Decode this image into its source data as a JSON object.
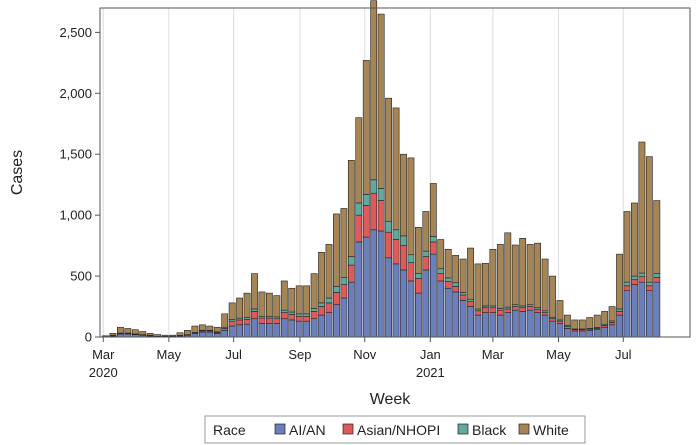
{
  "chart_data": {
    "type": "bar",
    "stacked": true,
    "xlabel": "Week",
    "ylabel": "Cases",
    "ylim": [
      0,
      2700
    ],
    "grid": "vertical",
    "legend": {
      "title": "Race",
      "position": "bottom"
    },
    "y_ticks": [
      "0",
      "500",
      "1,000",
      "1,500",
      "2,000",
      "2,500"
    ],
    "y_tick_values": [
      0,
      500,
      1000,
      1500,
      2000,
      2500
    ],
    "x_ticks": [
      {
        "label": "Mar",
        "year": "2020",
        "week_index": -0.3
      },
      {
        "label": "May",
        "year": "",
        "week_index": 8.5
      },
      {
        "label": "Jul",
        "year": "",
        "week_index": 17.2
      },
      {
        "label": "Sep",
        "year": "",
        "week_index": 26.1
      },
      {
        "label": "Nov",
        "year": "",
        "week_index": 34.8
      },
      {
        "label": "Jan",
        "year": "2021",
        "week_index": 43.6
      },
      {
        "label": "Mar",
        "year": "",
        "week_index": 52.0
      },
      {
        "label": "May",
        "year": "",
        "week_index": 60.8
      },
      {
        "label": "Jul",
        "year": "",
        "week_index": 69.5
      }
    ],
    "series_colors": [
      "#6b7fbd",
      "#e05a5a",
      "#5fa99f",
      "#a58455"
    ],
    "series": [
      {
        "name": "AI/AN",
        "values": [
          3,
          10,
          25,
          25,
          20,
          15,
          10,
          5,
          5,
          5,
          10,
          15,
          30,
          40,
          40,
          30,
          55,
          90,
          100,
          105,
          150,
          110,
          110,
          110,
          150,
          140,
          130,
          130,
          150,
          180,
          200,
          265,
          320,
          450,
          780,
          820,
          880,
          870,
          650,
          600,
          550,
          460,
          360,
          550,
          680,
          460,
          400,
          370,
          300,
          250,
          180,
          200,
          200,
          180,
          200,
          220,
          210,
          220,
          200,
          180,
          130,
          110,
          70,
          50,
          50,
          55,
          60,
          80,
          100,
          180,
          380,
          430,
          450,
          380,
          450
        ]
      },
      {
        "name": "Asian/NHOPI",
        "values": [
          0,
          2,
          5,
          5,
          3,
          3,
          2,
          1,
          1,
          1,
          2,
          3,
          5,
          10,
          10,
          8,
          15,
          40,
          40,
          40,
          60,
          45,
          45,
          40,
          50,
          45,
          40,
          40,
          60,
          70,
          80,
          100,
          110,
          140,
          220,
          260,
          300,
          250,
          210,
          200,
          200,
          150,
          120,
          110,
          100,
          60,
          55,
          45,
          45,
          40,
          35,
          40,
          40,
          40,
          30,
          30,
          30,
          30,
          25,
          20,
          20,
          20,
          15,
          10,
          10,
          10,
          10,
          15,
          20,
          30,
          40,
          40,
          45,
          40,
          40
        ]
      },
      {
        "name": "Black",
        "values": [
          0,
          1,
          2,
          2,
          2,
          1,
          1,
          0,
          0,
          0,
          1,
          1,
          2,
          5,
          5,
          4,
          10,
          15,
          15,
          15,
          20,
          15,
          15,
          15,
          20,
          20,
          20,
          20,
          25,
          30,
          40,
          50,
          60,
          70,
          100,
          90,
          110,
          100,
          90,
          80,
          80,
          65,
          40,
          45,
          45,
          40,
          30,
          30,
          20,
          20,
          15,
          15,
          15,
          15,
          15,
          15,
          15,
          15,
          15,
          15,
          12,
          10,
          8,
          6,
          6,
          6,
          8,
          10,
          12,
          20,
          30,
          30,
          30,
          30,
          30
        ]
      },
      {
        "name": "White",
        "values": [
          7,
          17,
          48,
          38,
          35,
          26,
          17,
          14,
          9,
          9,
          22,
          36,
          53,
          45,
          35,
          38,
          110,
          135,
          165,
          200,
          290,
          200,
          190,
          175,
          240,
          195,
          230,
          230,
          285,
          415,
          440,
          595,
          565,
          790,
          700,
          1100,
          1470,
          1430,
          1010,
          1000,
          670,
          795,
          380,
          325,
          435,
          240,
          235,
          225,
          275,
          420,
          370,
          350,
          465,
          525,
          610,
          490,
          555,
          495,
          530,
          425,
          338,
          160,
          87,
          74,
          74,
          89,
          102,
          105,
          118,
          450,
          580,
          600,
          1075,
          1030,
          600
        ]
      }
    ]
  }
}
